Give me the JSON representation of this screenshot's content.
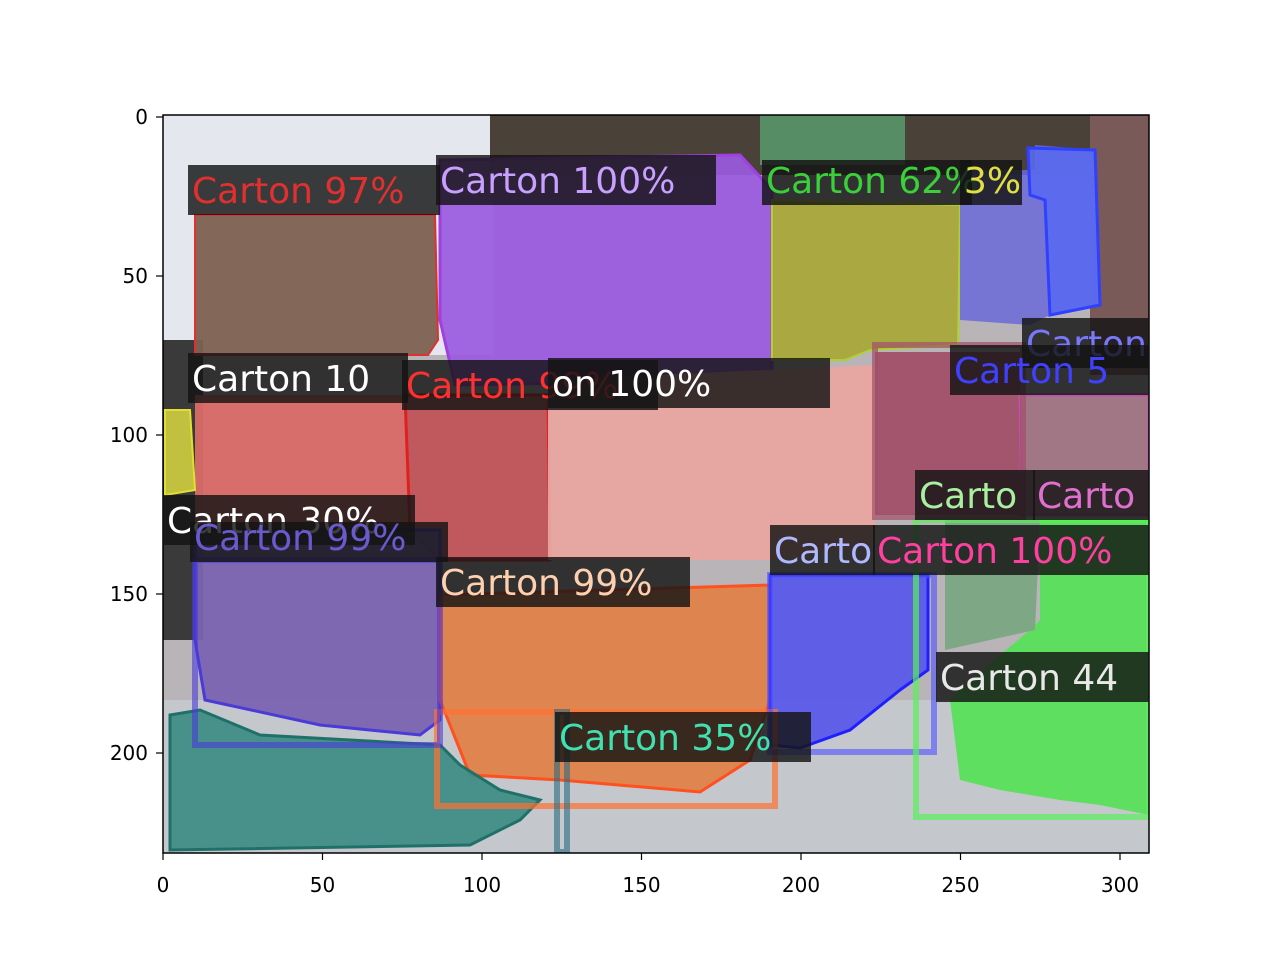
{
  "figure": {
    "x_ticks": [
      "0",
      "50",
      "100",
      "150",
      "200",
      "250",
      "300"
    ],
    "y_ticks": [
      "0",
      "50",
      "100",
      "150",
      "200"
    ]
  },
  "detections": [
    {
      "label": "Carton 97%",
      "color": "#e03030"
    },
    {
      "label": "Carton 100%",
      "color": "#c8a0ff"
    },
    {
      "label": "Carton 62%",
      "color": "#3ad03a"
    },
    {
      "label": "3%",
      "color": "#e0e040"
    },
    {
      "label": "Carton",
      "color": "#7878ff"
    },
    {
      "label": "Carton 5",
      "color": "#4040ff"
    },
    {
      "label": "Carton 10",
      "color": "#ffffff"
    },
    {
      "label": "Carton 99%",
      "color": "#ff3030"
    },
    {
      "label": "on 100%",
      "color": "#ffffff"
    },
    {
      "label": "Carto",
      "color": "#a8f0a0"
    },
    {
      "label": "Carto",
      "color": "#e070d0"
    },
    {
      "label": "Carton 30%",
      "color": "#ffffff"
    },
    {
      "label": "Carton 99%",
      "color": "#6a5ad0"
    },
    {
      "label": "Carton 99%",
      "color": "#ffd0b0"
    },
    {
      "label": "Carto",
      "color": "#b0b8ff"
    },
    {
      "label": "Carton 100%",
      "color": "#ff40a0"
    },
    {
      "label": "Carton 44",
      "color": "#e8e8e8"
    },
    {
      "label": "Carton 35%",
      "color": "#40e0b0"
    }
  ]
}
